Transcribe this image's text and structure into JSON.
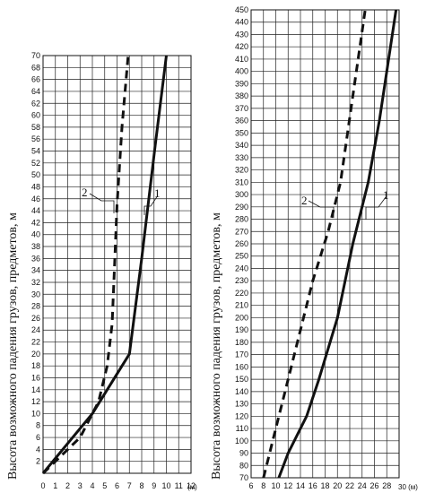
{
  "chart_data": [
    {
      "type": "line",
      "ylabel": "Высота возможного падения грузов, предметов, м",
      "x_unit": "(м)",
      "xlim": [
        0,
        12
      ],
      "ylim": [
        0,
        70
      ],
      "x_ticks": [
        0,
        1,
        2,
        3,
        4,
        5,
        6,
        7,
        8,
        9,
        10,
        11,
        12
      ],
      "y_ticks": [
        2,
        4,
        6,
        8,
        10,
        12,
        14,
        16,
        18,
        20,
        22,
        24,
        26,
        28,
        30,
        32,
        34,
        36,
        38,
        40,
        42,
        44,
        46,
        48,
        50,
        52,
        54,
        56,
        58,
        60,
        62,
        64,
        66,
        68,
        70
      ],
      "grid": true,
      "series": [
        {
          "name": "1",
          "style": "solid",
          "points": [
            [
              0,
              0
            ],
            [
              4,
              10
            ],
            [
              7,
              20
            ],
            [
              8,
              36
            ],
            [
              9.1,
              55
            ],
            [
              10,
              70
            ]
          ]
        },
        {
          "name": "2",
          "style": "dashed",
          "points": [
            [
              0,
              0
            ],
            [
              3,
              6
            ],
            [
              4.5,
              12
            ],
            [
              5.2,
              18
            ],
            [
              5.6,
              25
            ],
            [
              5.8,
              35
            ],
            [
              6,
              45
            ],
            [
              6.4,
              58
            ],
            [
              6.9,
              70
            ]
          ]
        }
      ],
      "annotations": [
        "2",
        "1"
      ]
    },
    {
      "type": "line",
      "ylabel": "Высота возможного падения грузов, предметов, м",
      "x_unit": "30 (м)",
      "xlim": [
        6,
        30
      ],
      "ylim": [
        70,
        450
      ],
      "x_ticks": [
        6,
        8,
        10,
        12,
        14,
        16,
        18,
        20,
        22,
        24,
        26,
        28
      ],
      "y_ticks": [
        70,
        80,
        90,
        100,
        110,
        120,
        130,
        140,
        150,
        160,
        170,
        180,
        190,
        200,
        210,
        220,
        230,
        240,
        250,
        260,
        270,
        280,
        290,
        300,
        310,
        320,
        330,
        340,
        350,
        360,
        370,
        380,
        390,
        400,
        410,
        420,
        430,
        440,
        450
      ],
      "grid": true,
      "series": [
        {
          "name": "1",
          "style": "solid",
          "points": [
            [
              10.5,
              70
            ],
            [
              12,
              90
            ],
            [
              15,
              120
            ],
            [
              17,
              150
            ],
            [
              20,
              200
            ],
            [
              22.5,
              260
            ],
            [
              25,
              310
            ],
            [
              26.8,
              360
            ],
            [
              29.5,
              450
            ]
          ]
        },
        {
          "name": "2",
          "style": "dashed",
          "points": [
            [
              8,
              70
            ],
            [
              10,
              110
            ],
            [
              12,
              150
            ],
            [
              14,
              190
            ],
            [
              16,
              230
            ],
            [
              18.5,
              270
            ],
            [
              20.5,
              310
            ],
            [
              22.5,
              380
            ],
            [
              24.5,
              450
            ]
          ]
        }
      ],
      "annotations": [
        "2",
        "1"
      ]
    }
  ]
}
